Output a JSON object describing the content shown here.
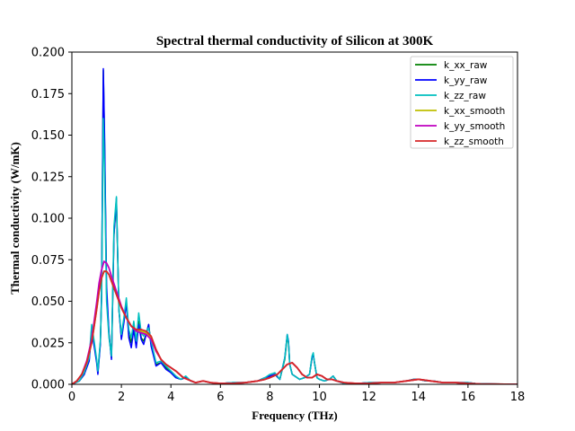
{
  "chart_data": {
    "type": "line",
    "title": "Spectral thermal conductivity of Silicon at 300K",
    "xlabel": "Frequency (THz)",
    "ylabel": "Thermal conductivity (W/mK)",
    "xlim": [
      0,
      18
    ],
    "ylim": [
      0,
      0.2
    ],
    "xticks": [
      0,
      2,
      4,
      6,
      8,
      10,
      12,
      14,
      16,
      18
    ],
    "xtick_labels": [
      "0",
      "2",
      "4",
      "6",
      "8",
      "10",
      "12",
      "14",
      "16",
      "18"
    ],
    "yticks": [
      0,
      0.025,
      0.05,
      0.075,
      0.1,
      0.125,
      0.15,
      0.175,
      0.2
    ],
    "ytick_labels": [
      "0.000",
      "0.025",
      "0.050",
      "0.075",
      "0.100",
      "0.125",
      "0.150",
      "0.175",
      "0.200"
    ],
    "grid": false,
    "legend_position": "top-right",
    "series": [
      {
        "name": "k_xx_raw",
        "color": "#008000",
        "x": [
          0,
          0.3,
          0.5,
          0.7,
          0.8,
          0.9,
          1.0,
          1.05,
          1.15,
          1.2,
          1.27,
          1.32,
          1.4,
          1.5,
          1.6,
          1.7,
          1.8,
          1.9,
          2.0,
          2.1,
          2.2,
          2.3,
          2.4,
          2.5,
          2.6,
          2.7,
          2.8,
          2.9,
          3.0,
          3.1,
          3.2,
          3.4,
          3.6,
          3.8,
          4.0,
          4.2,
          4.4,
          4.6,
          4.8,
          5.0,
          5.3,
          5.6,
          6.0,
          6.5,
          7.0,
          7.5,
          7.8,
          8.0,
          8.2,
          8.4,
          8.6,
          8.7,
          8.75,
          8.8,
          8.9,
          9.0,
          9.2,
          9.4,
          9.6,
          9.7,
          9.75,
          9.8,
          9.9,
          10.0,
          10.2,
          10.4,
          10.55,
          10.7,
          11.0,
          11.5,
          12.0,
          12.5,
          13.0,
          13.5,
          13.8,
          14.0,
          14.3,
          14.6,
          15.0,
          15.5,
          16.0,
          16.3,
          17.0,
          18.0
        ],
        "y": [
          0,
          0.002,
          0.006,
          0.015,
          0.034,
          0.024,
          0.014,
          0.007,
          0.025,
          0.055,
          0.189,
          0.145,
          0.055,
          0.03,
          0.016,
          0.09,
          0.11,
          0.045,
          0.028,
          0.038,
          0.05,
          0.03,
          0.025,
          0.035,
          0.023,
          0.038,
          0.028,
          0.026,
          0.03,
          0.036,
          0.024,
          0.012,
          0.013,
          0.01,
          0.007,
          0.004,
          0.003,
          0.004,
          0.002,
          0.001,
          0.002,
          0.001,
          0.0005,
          0.001,
          0.001,
          0.002,
          0.004,
          0.005,
          0.006,
          0.003,
          0.015,
          0.029,
          0.025,
          0.012,
          0.006,
          0.005,
          0.003,
          0.004,
          0.006,
          0.016,
          0.018,
          0.013,
          0.004,
          0.003,
          0.002,
          0.003,
          0.005,
          0.002,
          0.0005,
          0.0005,
          0.001,
          0.001,
          0.001,
          0.002,
          0.003,
          0.003,
          0.002,
          0.002,
          0.001,
          0.001,
          0.001,
          0.0005,
          0.0002,
          0
        ]
      },
      {
        "name": "k_yy_raw",
        "color": "#0000ff",
        "x": [
          0,
          0.3,
          0.5,
          0.7,
          0.8,
          0.9,
          1.0,
          1.05,
          1.15,
          1.2,
          1.27,
          1.32,
          1.4,
          1.5,
          1.6,
          1.7,
          1.8,
          1.9,
          2.0,
          2.1,
          2.2,
          2.3,
          2.4,
          2.5,
          2.6,
          2.7,
          2.8,
          2.9,
          3.0,
          3.1,
          3.2,
          3.4,
          3.6,
          3.8,
          4.0,
          4.2,
          4.4,
          4.6,
          4.8,
          5.0,
          5.3,
          5.6,
          6.0,
          6.5,
          7.0,
          7.5,
          7.8,
          8.0,
          8.2,
          8.4,
          8.6,
          8.7,
          8.75,
          8.8,
          8.9,
          9.0,
          9.2,
          9.4,
          9.6,
          9.7,
          9.75,
          9.8,
          9.9,
          10.0,
          10.2,
          10.4,
          10.55,
          10.7,
          11.0,
          11.5,
          12.0,
          12.5,
          13.0,
          13.5,
          13.8,
          14.0,
          14.3,
          14.6,
          15.0,
          15.5,
          16.0,
          16.3,
          17.0,
          18.0
        ],
        "y": [
          0,
          0.002,
          0.006,
          0.014,
          0.032,
          0.023,
          0.013,
          0.006,
          0.024,
          0.054,
          0.19,
          0.15,
          0.06,
          0.03,
          0.015,
          0.09,
          0.112,
          0.045,
          0.027,
          0.037,
          0.049,
          0.028,
          0.022,
          0.033,
          0.022,
          0.036,
          0.027,
          0.024,
          0.03,
          0.036,
          0.023,
          0.011,
          0.013,
          0.009,
          0.007,
          0.004,
          0.003,
          0.004,
          0.002,
          0.001,
          0.002,
          0.001,
          0.0005,
          0.001,
          0.001,
          0.002,
          0.004,
          0.005,
          0.006,
          0.003,
          0.016,
          0.03,
          0.026,
          0.012,
          0.006,
          0.005,
          0.003,
          0.004,
          0.006,
          0.016,
          0.018,
          0.013,
          0.004,
          0.003,
          0.002,
          0.003,
          0.005,
          0.002,
          0.0005,
          0.0005,
          0.001,
          0.001,
          0.001,
          0.002,
          0.003,
          0.003,
          0.002,
          0.002,
          0.001,
          0.001,
          0.001,
          0.0005,
          0.0002,
          0
        ]
      },
      {
        "name": "k_zz_raw",
        "color": "#00bfbf",
        "x": [
          0,
          0.3,
          0.5,
          0.7,
          0.8,
          0.9,
          1.0,
          1.05,
          1.15,
          1.2,
          1.27,
          1.32,
          1.4,
          1.5,
          1.6,
          1.7,
          1.8,
          1.9,
          2.0,
          2.1,
          2.2,
          2.3,
          2.4,
          2.5,
          2.6,
          2.7,
          2.8,
          2.9,
          3.0,
          3.1,
          3.2,
          3.4,
          3.6,
          3.8,
          4.0,
          4.2,
          4.4,
          4.6,
          4.8,
          5.0,
          5.3,
          5.6,
          6.0,
          6.5,
          7.0,
          7.5,
          7.8,
          8.0,
          8.2,
          8.4,
          8.6,
          8.7,
          8.75,
          8.8,
          8.9,
          9.0,
          9.2,
          9.4,
          9.6,
          9.7,
          9.75,
          9.8,
          9.9,
          10.0,
          10.2,
          10.4,
          10.55,
          10.7,
          11.0,
          11.5,
          12.0,
          12.5,
          13.0,
          13.5,
          13.8,
          14.0,
          14.3,
          14.6,
          15.0,
          15.5,
          16.0,
          16.3,
          17.0,
          18.0
        ],
        "y": [
          0,
          0.002,
          0.007,
          0.016,
          0.036,
          0.026,
          0.015,
          0.008,
          0.026,
          0.05,
          0.16,
          0.13,
          0.05,
          0.028,
          0.017,
          0.095,
          0.113,
          0.045,
          0.03,
          0.04,
          0.052,
          0.033,
          0.028,
          0.038,
          0.026,
          0.043,
          0.031,
          0.029,
          0.032,
          0.034,
          0.026,
          0.013,
          0.014,
          0.011,
          0.008,
          0.005,
          0.003,
          0.005,
          0.002,
          0.001,
          0.002,
          0.001,
          0.0005,
          0.001,
          0.001,
          0.002,
          0.004,
          0.006,
          0.007,
          0.003,
          0.016,
          0.03,
          0.025,
          0.012,
          0.006,
          0.005,
          0.003,
          0.004,
          0.006,
          0.017,
          0.019,
          0.013,
          0.004,
          0.003,
          0.002,
          0.003,
          0.005,
          0.002,
          0.0005,
          0.0005,
          0.001,
          0.001,
          0.001,
          0.002,
          0.003,
          0.003,
          0.002,
          0.002,
          0.001,
          0.001,
          0.001,
          0.0005,
          0.0002,
          0
        ]
      },
      {
        "name": "k_xx_smooth",
        "color": "#bfbf00",
        "x": [
          0,
          0.2,
          0.4,
          0.6,
          0.8,
          1.0,
          1.1,
          1.2,
          1.3,
          1.4,
          1.5,
          1.6,
          1.8,
          2.0,
          2.2,
          2.4,
          2.6,
          2.8,
          3.0,
          3.2,
          3.4,
          3.6,
          3.8,
          4.0,
          4.2,
          4.5,
          5.0,
          5.3,
          5.6,
          6.0,
          6.5,
          7.0,
          7.5,
          7.8,
          8.0,
          8.3,
          8.5,
          8.7,
          8.9,
          9.1,
          9.3,
          9.5,
          9.7,
          9.9,
          10.1,
          10.3,
          10.5,
          10.7,
          11.0,
          11.5,
          12.0,
          12.5,
          13.0,
          13.5,
          14.0,
          14.5,
          15.0,
          15.5,
          16.0,
          16.5,
          17.0,
          18.0
        ],
        "y": [
          0,
          0.002,
          0.006,
          0.013,
          0.025,
          0.045,
          0.056,
          0.064,
          0.068,
          0.068,
          0.066,
          0.062,
          0.054,
          0.046,
          0.04,
          0.035,
          0.032,
          0.032,
          0.031,
          0.028,
          0.02,
          0.015,
          0.012,
          0.01,
          0.008,
          0.004,
          0.001,
          0.002,
          0.001,
          0.0005,
          0.0005,
          0.001,
          0.002,
          0.003,
          0.004,
          0.006,
          0.009,
          0.012,
          0.013,
          0.01,
          0.006,
          0.004,
          0.004,
          0.006,
          0.005,
          0.003,
          0.003,
          0.002,
          0.001,
          0.0005,
          0.0005,
          0.001,
          0.001,
          0.002,
          0.003,
          0.002,
          0.001,
          0.001,
          0.0005,
          0.0002,
          0.0001,
          0
        ]
      },
      {
        "name": "k_yy_smooth",
        "color": "#bf00bf",
        "x": [
          0,
          0.2,
          0.4,
          0.6,
          0.8,
          1.0,
          1.1,
          1.2,
          1.3,
          1.4,
          1.5,
          1.6,
          1.8,
          2.0,
          2.2,
          2.4,
          2.6,
          2.8,
          3.0,
          3.2,
          3.4,
          3.6,
          3.8,
          4.0,
          4.2,
          4.5,
          5.0,
          5.3,
          5.6,
          6.0,
          6.5,
          7.0,
          7.5,
          7.8,
          8.0,
          8.3,
          8.5,
          8.7,
          8.9,
          9.1,
          9.3,
          9.5,
          9.7,
          9.9,
          10.1,
          10.3,
          10.5,
          10.7,
          11.0,
          11.5,
          12.0,
          12.5,
          13.0,
          13.5,
          14.0,
          14.5,
          15.0,
          15.5,
          16.0,
          16.5,
          17.0,
          18.0
        ],
        "y": [
          0,
          0.002,
          0.006,
          0.014,
          0.027,
          0.049,
          0.061,
          0.069,
          0.074,
          0.073,
          0.07,
          0.065,
          0.056,
          0.047,
          0.04,
          0.035,
          0.032,
          0.031,
          0.03,
          0.027,
          0.02,
          0.015,
          0.012,
          0.01,
          0.008,
          0.004,
          0.001,
          0.002,
          0.001,
          0.0005,
          0.0005,
          0.001,
          0.002,
          0.003,
          0.004,
          0.006,
          0.009,
          0.012,
          0.013,
          0.01,
          0.006,
          0.004,
          0.004,
          0.006,
          0.005,
          0.003,
          0.003,
          0.002,
          0.001,
          0.0005,
          0.0005,
          0.001,
          0.001,
          0.002,
          0.003,
          0.002,
          0.001,
          0.001,
          0.0005,
          0.0002,
          0.0001,
          0
        ]
      },
      {
        "name": "k_zz_smooth",
        "color": "#d62728",
        "x": [
          0,
          0.2,
          0.4,
          0.6,
          0.8,
          1.0,
          1.1,
          1.2,
          1.3,
          1.4,
          1.5,
          1.6,
          1.8,
          2.0,
          2.2,
          2.4,
          2.6,
          2.8,
          3.0,
          3.2,
          3.4,
          3.6,
          3.8,
          4.0,
          4.2,
          4.5,
          5.0,
          5.3,
          5.6,
          6.0,
          6.5,
          7.0,
          7.5,
          7.8,
          8.0,
          8.3,
          8.5,
          8.7,
          8.9,
          9.1,
          9.3,
          9.5,
          9.7,
          9.9,
          10.1,
          10.3,
          10.5,
          10.7,
          11.0,
          11.5,
          12.0,
          12.5,
          13.0,
          13.5,
          14.0,
          14.5,
          15.0,
          15.5,
          16.0,
          16.5,
          17.0,
          18.0
        ],
        "y": [
          0,
          0.002,
          0.006,
          0.013,
          0.025,
          0.045,
          0.056,
          0.064,
          0.068,
          0.068,
          0.066,
          0.062,
          0.054,
          0.046,
          0.04,
          0.035,
          0.033,
          0.033,
          0.032,
          0.029,
          0.021,
          0.015,
          0.012,
          0.01,
          0.008,
          0.004,
          0.001,
          0.002,
          0.001,
          0.0005,
          0.0005,
          0.001,
          0.002,
          0.003,
          0.004,
          0.006,
          0.009,
          0.012,
          0.013,
          0.01,
          0.006,
          0.004,
          0.004,
          0.006,
          0.005,
          0.003,
          0.003,
          0.002,
          0.001,
          0.0005,
          0.0005,
          0.001,
          0.001,
          0.002,
          0.003,
          0.002,
          0.001,
          0.001,
          0.0005,
          0.0002,
          0.0001,
          0
        ]
      }
    ]
  }
}
